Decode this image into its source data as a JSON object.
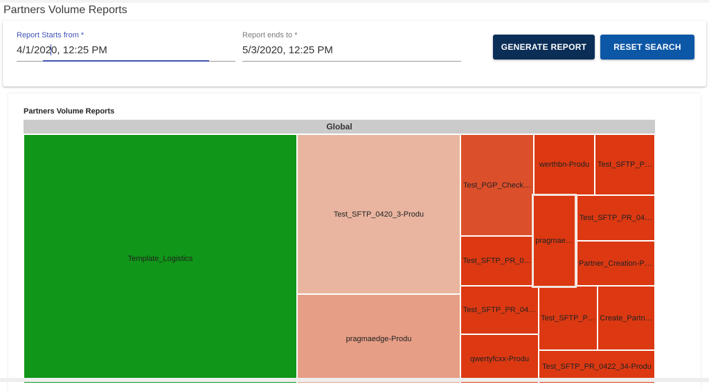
{
  "page": {
    "title": "Partners Volume Reports"
  },
  "filters": {
    "start": {
      "label": "Report Starts from *",
      "value_before_caret": "4/1/202",
      "value_after_caret": "0, 12:25 PM"
    },
    "end": {
      "label": "Report ends to *",
      "value": "5/3/2020, 12:25 PM"
    },
    "generate_label": "GENERATE REPORT",
    "reset_label": "RESET SEARCH"
  },
  "report": {
    "title": "Partners Volume Reports",
    "root_label": "Global"
  },
  "colors": {
    "green": "#109618",
    "light_salmon": "#e9b5a0",
    "salmon": "#e69e86",
    "orange_red": "#dc4f2b",
    "red": "#dc3912",
    "highlight_border": "#f3e6e0"
  },
  "chart_data": {
    "type": "treemap",
    "title": "Partners Volume Reports",
    "root": "Global",
    "nodes": [
      {
        "id": "template-logistics",
        "label": "Template_Logistics",
        "color": "#109618"
      },
      {
        "id": "test-sftp-0420-3",
        "label": "Test_SFTP_0420_3-Produ",
        "color": "#e9b5a0"
      },
      {
        "id": "pragmaedge-produ",
        "label": "pragmaedge-Produ",
        "color": "#e69e86"
      },
      {
        "id": "test-pgp-check",
        "label": "Test_PGP_Check…",
        "color": "#dc4f2b"
      },
      {
        "id": "test-sftp-pr-0",
        "label": "Test_SFTP_PR_0…",
        "color": "#dc3912"
      },
      {
        "id": "test-sftp-pr-04-a",
        "label": "Test_SFTP_PR_04…",
        "color": "#dc3912"
      },
      {
        "id": "qwertyfcxx-produ",
        "label": "qwertyfcxx-Produ",
        "color": "#dc3912"
      },
      {
        "id": "werthbn-produ",
        "label": "werthbn-Produ",
        "color": "#dc3912"
      },
      {
        "id": "test-sftp-p-a",
        "label": "Test_SFTP_P…",
        "color": "#dc3912"
      },
      {
        "id": "pragmae",
        "label": "pragmae…",
        "color": "#dc3912",
        "highlighted": true
      },
      {
        "id": "test-sftp-pr-04-b",
        "label": "Test_SFTP_PR_04…",
        "color": "#dc3912"
      },
      {
        "id": "partner-creation-pr",
        "label": "Partner_Creation-Pr…",
        "color": "#dc3912"
      },
      {
        "id": "test-sftp-p-b",
        "label": "Test_SFTP_P…",
        "color": "#dc3912"
      },
      {
        "id": "create-partn",
        "label": "Create_Partn…",
        "color": "#dc3912"
      },
      {
        "id": "test-sftp-pr-0422-34",
        "label": "Test_SFTP_PR_0422_34-Produ",
        "color": "#dc3912"
      }
    ]
  }
}
